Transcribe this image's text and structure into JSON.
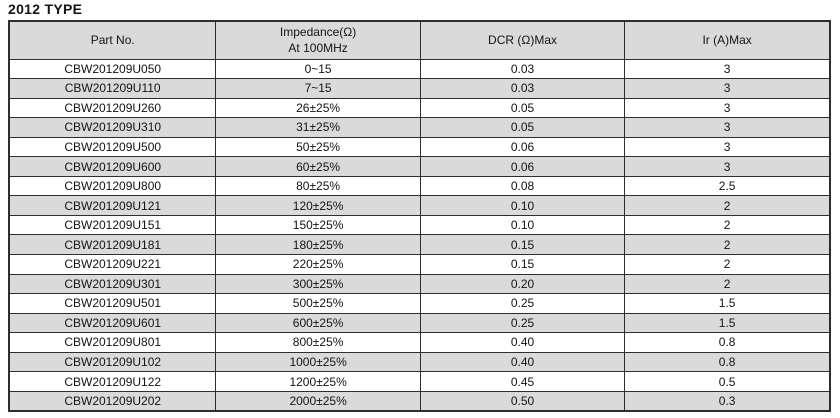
{
  "page_title": "2012 TYPE",
  "colors": {
    "header_bg": "#dadada",
    "row_stripe": "#dadada",
    "border": "#2e2e2e",
    "text": "#141414",
    "background": "#ffffff"
  },
  "table": {
    "header": {
      "part_no": "Part No.",
      "impedance_line1": "Impedance(Ω)",
      "impedance_line2": "At 100MHz",
      "dcr": "DCR (Ω)Max",
      "ir": "Ir (A)Max"
    },
    "rows": [
      [
        "CBW201209U050",
        "0~15",
        "0.03",
        "3"
      ],
      [
        "CBW201209U110",
        "7~15",
        "0.03",
        "3"
      ],
      [
        "CBW201209U260",
        "26±25%",
        "0.05",
        "3"
      ],
      [
        "CBW201209U310",
        "31±25%",
        "0.05",
        "3"
      ],
      [
        "CBW201209U500",
        "50±25%",
        "0.06",
        "3"
      ],
      [
        "CBW201209U600",
        "60±25%",
        "0.06",
        "3"
      ],
      [
        "CBW201209U800",
        "80±25%",
        "0.08",
        "2.5"
      ],
      [
        "CBW201209U121",
        "120±25%",
        "0.10",
        "2"
      ],
      [
        "CBW201209U151",
        "150±25%",
        "0.10",
        "2"
      ],
      [
        "CBW201209U181",
        "180±25%",
        "0.15",
        "2"
      ],
      [
        "CBW201209U221",
        "220±25%",
        "0.15",
        "2"
      ],
      [
        "CBW201209U301",
        "300±25%",
        "0.20",
        "2"
      ],
      [
        "CBW201209U501",
        "500±25%",
        "0.25",
        "1.5"
      ],
      [
        "CBW201209U601",
        "600±25%",
        "0.25",
        "1.5"
      ],
      [
        "CBW201209U801",
        "800±25%",
        "0.40",
        "0.8"
      ],
      [
        "CBW201209U102",
        "1000±25%",
        "0.40",
        "0.8"
      ],
      [
        "CBW201209U122",
        "1200±25%",
        "0.45",
        "0.5"
      ],
      [
        "CBW201209U202",
        "2000±25%",
        "0.50",
        "0.3"
      ]
    ]
  }
}
